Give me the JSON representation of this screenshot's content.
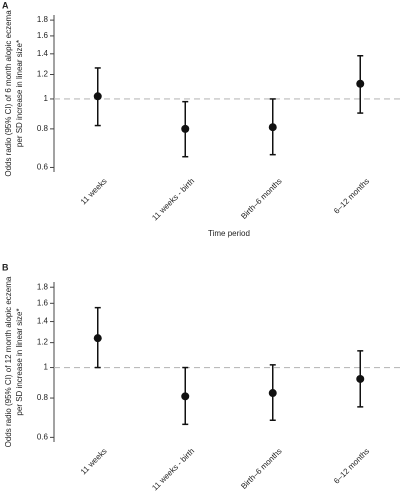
{
  "chart_data": [
    {
      "type": "errorbar",
      "panel_label": "A",
      "y_label": [
        "Odds radio (95% CI) of 6 month alopic eczema",
        "per SD increase in linear size*"
      ],
      "x_label": "Time period",
      "categories": [
        "11 weeks",
        "11 weeks - birth",
        "Birth–6 months",
        "6–12 months"
      ],
      "values": [
        1.02,
        0.8,
        0.81,
        1.12
      ],
      "ci_lower": [
        0.82,
        0.65,
        0.66,
        0.9
      ],
      "ci_upper": [
        1.26,
        0.98,
        1.0,
        1.38
      ],
      "color": "#111111",
      "log_scale": true,
      "reference_line": 1,
      "ylim": [
        0.58,
        1.87
      ],
      "yticks": [
        0.6,
        0.8,
        1,
        1.2,
        1.4,
        1.6,
        1.8
      ]
    },
    {
      "type": "errorbar",
      "panel_label": "B",
      "y_label": [
        "Odds radio (95% CI) of 12 month alopic eczema",
        "per SD increase in linear size*"
      ],
      "x_label": "Time period",
      "categories": [
        "11 weeks",
        "11 weeks - birth",
        "Birth–6 months",
        "6–12 months"
      ],
      "values": [
        1.24,
        0.81,
        0.83,
        0.92
      ],
      "ci_lower": [
        1.0,
        0.66,
        0.68,
        0.75
      ],
      "ci_upper": [
        1.55,
        1.0,
        1.02,
        1.13
      ],
      "color": "#111111",
      "log_scale": true,
      "reference_line": 1,
      "ylim": [
        0.58,
        1.87
      ],
      "yticks": [
        0.6,
        0.8,
        1,
        1.2,
        1.4,
        1.6,
        1.8
      ]
    }
  ]
}
